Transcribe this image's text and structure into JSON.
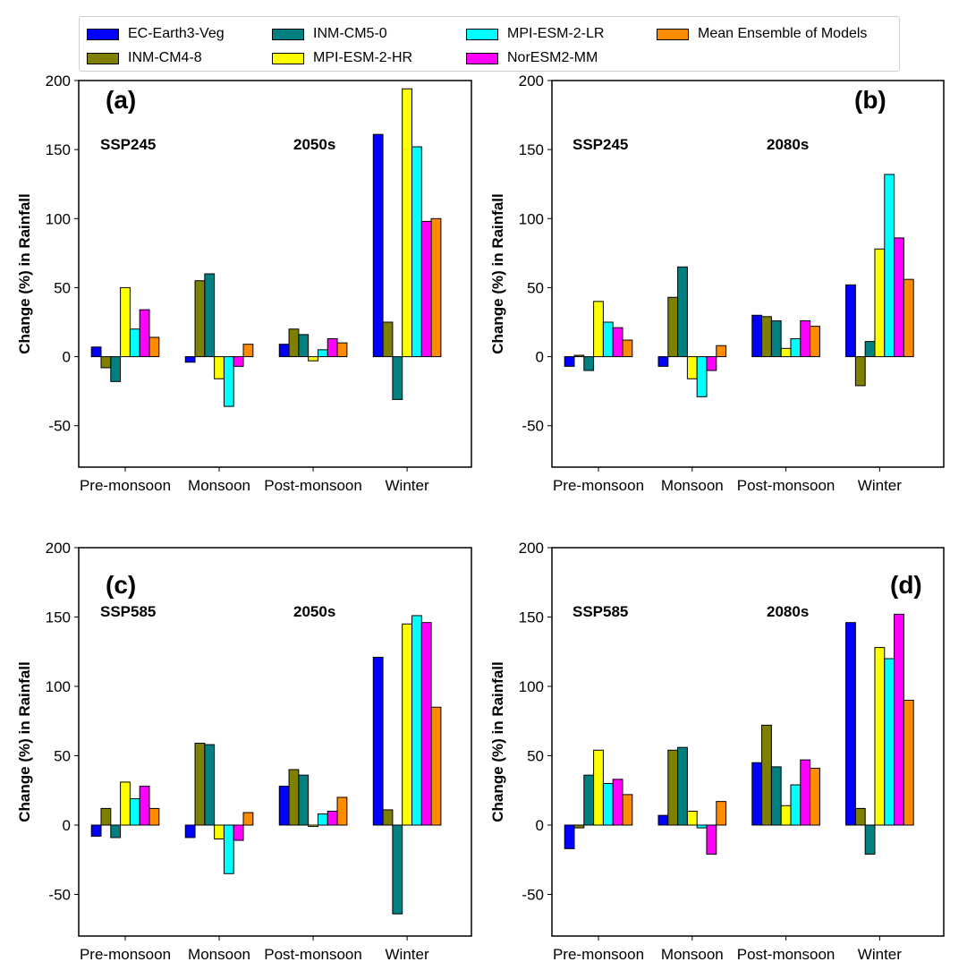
{
  "legend": {
    "title": "",
    "items": [
      {
        "name": "EC-Earth3-Veg",
        "color": "#0000ff"
      },
      {
        "name": "INM-CM4-8",
        "color": "#808000"
      },
      {
        "name": "INM-CM5-0",
        "color": "#008080"
      },
      {
        "name": "MPI-ESM-2-HR",
        "color": "#ffff00"
      },
      {
        "name": "MPI-ESM-2-LR",
        "color": "#00ffff"
      },
      {
        "name": "NorESM2-MM",
        "color": "#ff00ff"
      },
      {
        "name": "Mean Ensemble of Models",
        "color": "#ff8c00"
      }
    ]
  },
  "chart_data": [
    {
      "type": "bar",
      "panel_label": "(a)",
      "scenario": "SSP245",
      "period": "2050s",
      "ylabel": "Change (%) in Rainfall",
      "xlabel": "",
      "ylim": [
        -80,
        200
      ],
      "yticks": [
        -50,
        0,
        50,
        100,
        150,
        200
      ],
      "categories": [
        "Pre-monsoon",
        "Monsoon",
        "Post-monsoon",
        "Winter"
      ],
      "series": [
        {
          "name": "EC-Earth3-Veg",
          "values": [
            7,
            -4,
            9,
            161
          ]
        },
        {
          "name": "INM-CM4-8",
          "values": [
            -8,
            55,
            20,
            25
          ]
        },
        {
          "name": "INM-CM5-0",
          "values": [
            -18,
            60,
            16,
            -31
          ]
        },
        {
          "name": "MPI-ESM-2-HR",
          "values": [
            50,
            -16,
            -3,
            194
          ]
        },
        {
          "name": "MPI-ESM-2-LR",
          "values": [
            20,
            -36,
            5,
            152
          ]
        },
        {
          "name": "NorESM2-MM",
          "values": [
            34,
            -7,
            13,
            98
          ]
        },
        {
          "name": "Mean Ensemble of Models",
          "values": [
            14,
            9,
            10,
            100
          ]
        }
      ]
    },
    {
      "type": "bar",
      "panel_label": "(b)",
      "scenario": "SSP245",
      "period": "2080s",
      "ylabel": "Change (%) in Rainfall",
      "xlabel": "",
      "ylim": [
        -80,
        200
      ],
      "yticks": [
        -50,
        0,
        50,
        100,
        150,
        200
      ],
      "categories": [
        "Pre-monsoon",
        "Monsoon",
        "Post-monsoon",
        "Winter"
      ],
      "series": [
        {
          "name": "EC-Earth3-Veg",
          "values": [
            -7,
            -7,
            30,
            52
          ]
        },
        {
          "name": "INM-CM4-8",
          "values": [
            1,
            43,
            29,
            -21
          ]
        },
        {
          "name": "INM-CM5-0",
          "values": [
            -10,
            65,
            26,
            11
          ]
        },
        {
          "name": "MPI-ESM-2-HR",
          "values": [
            40,
            -16,
            6,
            78
          ]
        },
        {
          "name": "MPI-ESM-2-LR",
          "values": [
            25,
            -29,
            13,
            132
          ]
        },
        {
          "name": "NorESM2-MM",
          "values": [
            21,
            -10,
            26,
            86
          ]
        },
        {
          "name": "Mean Ensemble of Models",
          "values": [
            12,
            8,
            22,
            56
          ]
        }
      ]
    },
    {
      "type": "bar",
      "panel_label": "(c)",
      "scenario": "SSP585",
      "period": "2050s",
      "ylabel": "Change (%) in Rainfall",
      "xlabel": "",
      "ylim": [
        -80,
        200
      ],
      "yticks": [
        -50,
        0,
        50,
        100,
        150,
        200
      ],
      "categories": [
        "Pre-monsoon",
        "Monsoon",
        "Post-monsoon",
        "Winter"
      ],
      "series": [
        {
          "name": "EC-Earth3-Veg",
          "values": [
            -8,
            -9,
            28,
            121
          ]
        },
        {
          "name": "INM-CM4-8",
          "values": [
            12,
            59,
            40,
            11
          ]
        },
        {
          "name": "INM-CM5-0",
          "values": [
            -9,
            58,
            36,
            -64
          ]
        },
        {
          "name": "MPI-ESM-2-HR",
          "values": [
            31,
            -10,
            -1,
            145
          ]
        },
        {
          "name": "MPI-ESM-2-LR",
          "values": [
            19,
            -35,
            8,
            151
          ]
        },
        {
          "name": "NorESM2-MM",
          "values": [
            28,
            -11,
            10,
            146
          ]
        },
        {
          "name": "Mean Ensemble of Models",
          "values": [
            12,
            9,
            20,
            85
          ]
        }
      ]
    },
    {
      "type": "bar",
      "panel_label": "(d)",
      "scenario": "SSP585",
      "period": "2080s",
      "ylabel": "Change (%) in Rainfall",
      "xlabel": "",
      "ylim": [
        -80,
        200
      ],
      "yticks": [
        -50,
        0,
        50,
        100,
        150,
        200
      ],
      "categories": [
        "Pre-monsoon",
        "Monsoon",
        "Post-monsoon",
        "Winter"
      ],
      "series": [
        {
          "name": "EC-Earth3-Veg",
          "values": [
            -17,
            7,
            45,
            146
          ]
        },
        {
          "name": "INM-CM4-8",
          "values": [
            -2,
            54,
            72,
            12
          ]
        },
        {
          "name": "INM-CM5-0",
          "values": [
            36,
            56,
            42,
            -21
          ]
        },
        {
          "name": "MPI-ESM-2-HR",
          "values": [
            54,
            10,
            14,
            128
          ]
        },
        {
          "name": "MPI-ESM-2-LR",
          "values": [
            30,
            -2,
            29,
            120
          ]
        },
        {
          "name": "NorESM2-MM",
          "values": [
            33,
            -21,
            47,
            152
          ]
        },
        {
          "name": "Mean Ensemble of Models",
          "values": [
            22,
            17,
            41,
            90
          ]
        }
      ]
    }
  ]
}
